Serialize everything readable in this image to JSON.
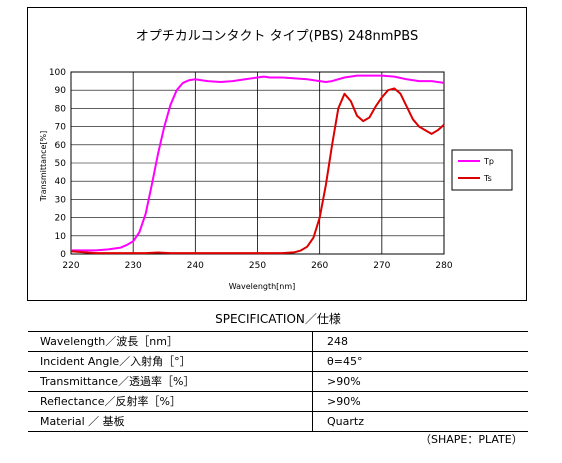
{
  "chart_data": {
    "type": "line",
    "title": "オプチカルコンタクト タイプ(PBS)  248nmPBS",
    "xlabel": "Wavelength[nm]",
    "ylabel": "Transmittance[%]",
    "xlim": [
      220,
      280
    ],
    "ylim": [
      0,
      100
    ],
    "x_ticks": [
      "220",
      "230",
      "240",
      "250",
      "260",
      "270",
      "280"
    ],
    "y_ticks": [
      "0",
      "10",
      "20",
      "30",
      "40",
      "50",
      "60",
      "70",
      "80",
      "90",
      "100"
    ],
    "grid": "vertical and horizontal",
    "legend_position": "right",
    "series": [
      {
        "name": "Tp",
        "color": "#ff00ff",
        "points": [
          [
            220,
            2
          ],
          [
            222,
            2
          ],
          [
            224,
            2
          ],
          [
            226,
            2.5
          ],
          [
            228,
            3.5
          ],
          [
            229,
            5
          ],
          [
            230,
            7
          ],
          [
            231,
            12
          ],
          [
            232,
            22
          ],
          [
            233,
            38
          ],
          [
            234,
            55
          ],
          [
            235,
            70
          ],
          [
            236,
            82
          ],
          [
            237,
            90
          ],
          [
            238,
            94
          ],
          [
            239,
            95.5
          ],
          [
            240,
            96
          ],
          [
            241,
            95.5
          ],
          [
            242,
            95
          ],
          [
            244,
            94.5
          ],
          [
            246,
            95
          ],
          [
            248,
            96
          ],
          [
            250,
            97
          ],
          [
            251,
            97.5
          ],
          [
            252,
            97
          ],
          [
            254,
            97
          ],
          [
            256,
            96.5
          ],
          [
            258,
            96
          ],
          [
            260,
            95
          ],
          [
            261,
            94.5
          ],
          [
            262,
            95
          ],
          [
            264,
            97
          ],
          [
            266,
            98
          ],
          [
            268,
            98
          ],
          [
            270,
            98
          ],
          [
            272,
            97.5
          ],
          [
            274,
            96
          ],
          [
            276,
            95
          ],
          [
            278,
            95
          ],
          [
            280,
            94
          ]
        ]
      },
      {
        "name": "Ts",
        "color": "#dd0000",
        "points": [
          [
            220,
            1.5
          ],
          [
            222,
            1
          ],
          [
            224,
            0.5
          ],
          [
            226,
            0.5
          ],
          [
            228,
            0.5
          ],
          [
            230,
            0.5
          ],
          [
            232,
            0.5
          ],
          [
            234,
            0.8
          ],
          [
            236,
            0.5
          ],
          [
            238,
            0.5
          ],
          [
            240,
            0.5
          ],
          [
            245,
            0.5
          ],
          [
            250,
            0.5
          ],
          [
            254,
            0.5
          ],
          [
            256,
            1
          ],
          [
            257,
            2
          ],
          [
            258,
            4
          ],
          [
            259,
            9
          ],
          [
            260,
            20
          ],
          [
            261,
            38
          ],
          [
            262,
            60
          ],
          [
            263,
            80
          ],
          [
            264,
            88
          ],
          [
            265,
            84
          ],
          [
            266,
            76
          ],
          [
            267,
            73
          ],
          [
            268,
            75
          ],
          [
            269,
            81
          ],
          [
            270,
            86
          ],
          [
            271,
            90
          ],
          [
            272,
            91
          ],
          [
            273,
            88
          ],
          [
            274,
            81
          ],
          [
            275,
            74
          ],
          [
            276,
            70
          ],
          [
            277,
            68
          ],
          [
            278,
            66
          ],
          [
            279,
            68
          ],
          [
            280,
            71
          ]
        ]
      }
    ]
  },
  "spec": {
    "title": "SPECIFICATION／仕様",
    "rows": [
      {
        "label": "Wavelength／波長［nm］",
        "value": "248"
      },
      {
        "label": "Incident Angle／入射角［°］",
        "value": "θ=45°"
      },
      {
        "label": "Transmittance／透過率［%］",
        "value": ">90%"
      },
      {
        "label": "Reflectance／反射率［%］",
        "value": ">90%"
      },
      {
        "label": "Material ／ 基板",
        "value": "Quartz"
      }
    ],
    "footnote": "（SHAPE：PLATE）"
  }
}
